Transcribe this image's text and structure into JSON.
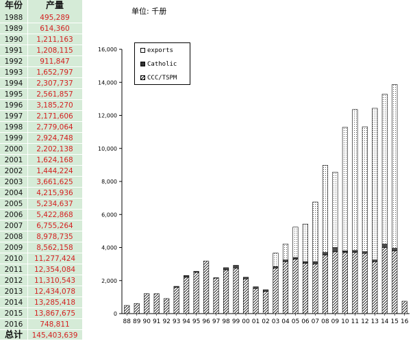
{
  "sheet": {
    "header_year": "年份",
    "header_value": "产量",
    "rows": [
      {
        "year": "1988",
        "value": "495,289"
      },
      {
        "year": "1989",
        "value": "614,360"
      },
      {
        "year": "1990",
        "value": "1,211,163"
      },
      {
        "year": "1991",
        "value": "1,208,115"
      },
      {
        "year": "1992",
        "value": "911,847"
      },
      {
        "year": "1993",
        "value": "1,652,797"
      },
      {
        "year": "1994",
        "value": "2,307,737"
      },
      {
        "year": "1995",
        "value": "2,561,857"
      },
      {
        "year": "1996",
        "value": "3,185,270"
      },
      {
        "year": "1997",
        "value": "2,171,606"
      },
      {
        "year": "1998",
        "value": "2,779,064"
      },
      {
        "year": "1999",
        "value": "2,924,748"
      },
      {
        "year": "2000",
        "value": "2,202,138"
      },
      {
        "year": "2001",
        "value": "1,624,168"
      },
      {
        "year": "2002",
        "value": "1,444,224"
      },
      {
        "year": "2003",
        "value": "3,661,625"
      },
      {
        "year": "2004",
        "value": "4,215,936"
      },
      {
        "year": "2005",
        "value": "5,234,637"
      },
      {
        "year": "2006",
        "value": "5,422,868"
      },
      {
        "year": "2007",
        "value": "6,755,264"
      },
      {
        "year": "2008",
        "value": "8,978,735"
      },
      {
        "year": "2009",
        "value": "8,562,158"
      },
      {
        "year": "2010",
        "value": "11,277,424"
      },
      {
        "year": "2011",
        "value": "12,354,084"
      },
      {
        "year": "2012",
        "value": "11,310,543"
      },
      {
        "year": "2013",
        "value": "12,434,078"
      },
      {
        "year": "2014",
        "value": "13,285,418"
      },
      {
        "year": "2015",
        "value": "13,867,675"
      },
      {
        "year": "2016",
        "value": "748,811"
      }
    ],
    "total_label": "总计",
    "total_value": "145,403,639"
  },
  "chart_unit": "单位: 千册",
  "legend": {
    "placement": "top-left",
    "items": [
      "exports",
      "Catholic",
      "CCC/TSPM"
    ]
  },
  "colors": {
    "sheet_bg": "#d5ebd7",
    "value_text": "#d42020",
    "bar_stroke": "#000000"
  },
  "chart_data": {
    "type": "bar",
    "stacked": true,
    "unit": "千册",
    "categories": [
      "88",
      "89",
      "90",
      "91",
      "92",
      "93",
      "94",
      "95",
      "96",
      "97",
      "98",
      "99",
      "00",
      "01",
      "02",
      "03",
      "04",
      "05",
      "06",
      "07",
      "08",
      "09",
      "10",
      "11",
      "12",
      "13",
      "14",
      "15",
      "16"
    ],
    "ylim": [
      0,
      16000
    ],
    "yticks": [
      "0",
      "2,000",
      "4,000",
      "6,000",
      "8,000",
      "10,000",
      "12,000",
      "14,000",
      "16,000"
    ],
    "ytick_values": [
      0,
      2000,
      4000,
      6000,
      8000,
      10000,
      12000,
      14000,
      16000
    ],
    "grid": false,
    "series": [
      {
        "name": "CCC/TSPM",
        "values": [
          495,
          614,
          1211,
          1208,
          912,
          1600,
          2200,
          2500,
          3185,
          2150,
          2650,
          2750,
          2100,
          1520,
          1350,
          2750,
          3150,
          3300,
          3050,
          3000,
          3550,
          3750,
          3700,
          3700,
          3650,
          3150,
          4000,
          3800,
          749
        ]
      },
      {
        "name": "Catholic",
        "values": [
          0,
          0,
          0,
          0,
          0,
          53,
          108,
          62,
          0,
          22,
          129,
          175,
          102,
          104,
          94,
          100,
          100,
          100,
          100,
          150,
          150,
          250,
          100,
          120,
          100,
          100,
          200,
          150,
          0
        ]
      },
      {
        "name": "exports",
        "values": [
          0,
          0,
          0,
          0,
          0,
          0,
          0,
          0,
          0,
          0,
          0,
          0,
          0,
          0,
          0,
          812,
          966,
          1835,
          2273,
          3605,
          5279,
          4562,
          7477,
          8534,
          7561,
          9184,
          9085,
          9918,
          0
        ]
      }
    ]
  }
}
